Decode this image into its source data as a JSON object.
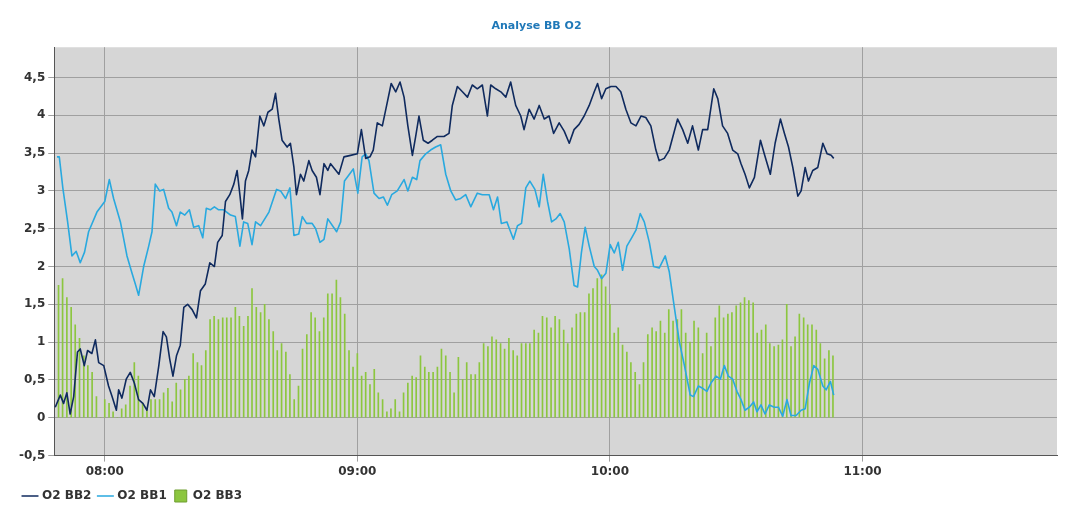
{
  "chart_data": {
    "type": "line",
    "title": "Analyse BB O2",
    "xlim": [
      7.8,
      11.77
    ],
    "xticks": [
      {
        "value": 8,
        "label": "08:00"
      },
      {
        "value": 9,
        "label": "09:00"
      },
      {
        "value": 10,
        "label": "10:00"
      },
      {
        "value": 11,
        "label": "11:00"
      }
    ],
    "ylim": [
      -0.5,
      4.9
    ],
    "yticks": [
      {
        "value": -0.5,
        "label": "-0,5"
      },
      0,
      {
        "value": 0.5,
        "label": "0,5"
      },
      1,
      {
        "value": 1.5,
        "label": "1,5"
      },
      2,
      {
        "value": 2.5,
        "label": "2,5"
      },
      3,
      {
        "value": 3.5,
        "label": "3,5"
      },
      4,
      {
        "value": 4.5,
        "label": "4,5"
      }
    ],
    "grid": true,
    "legend": "bottom left",
    "marker": "none",
    "line_style": "solid",
    "series": [
      {
        "name": "O2 BB2",
        "color": "#0f2a5e",
        "x": [
          7.804,
          7.824,
          7.837,
          7.85,
          7.863,
          7.877,
          7.892,
          7.903,
          7.919,
          7.932,
          7.949,
          7.963,
          7.976,
          7.996,
          8.015,
          8.029,
          8.046,
          8.055,
          8.068,
          8.085,
          8.101,
          8.117,
          8.134,
          8.151,
          8.167,
          8.181,
          8.196,
          8.214,
          8.231,
          8.244,
          8.257,
          8.27,
          8.284,
          8.299,
          8.313,
          8.328,
          8.346,
          8.363,
          8.379,
          8.398,
          8.416,
          8.434,
          8.447,
          8.465,
          8.478,
          8.495,
          8.511,
          8.524,
          8.535,
          8.545,
          8.557,
          8.57,
          8.583,
          8.597,
          8.614,
          8.63,
          8.646,
          8.663,
          8.676,
          8.689,
          8.702,
          8.722,
          8.735,
          8.749,
          8.759,
          8.775,
          8.788,
          8.808,
          8.821,
          8.838,
          8.852,
          8.868,
          8.883,
          8.894,
          8.927,
          8.947,
          8.973,
          9.0,
          9.016,
          9.033,
          9.05,
          9.063,
          9.079,
          9.099,
          9.116,
          9.134,
          9.152,
          9.169,
          9.185,
          9.2,
          9.218,
          9.231,
          9.244,
          9.261,
          9.28,
          9.297,
          9.317,
          9.343,
          9.363,
          9.376,
          9.396,
          9.416,
          9.436,
          9.455,
          9.475,
          9.495,
          9.515,
          9.528,
          9.548,
          9.568,
          9.588,
          9.607,
          9.627,
          9.647,
          9.66,
          9.68,
          9.7,
          9.72,
          9.74,
          9.759,
          9.777,
          9.799,
          9.819,
          9.839,
          9.858,
          9.878,
          9.898,
          9.918,
          9.938,
          9.951,
          9.967,
          9.984,
          10.004,
          10.024,
          10.043,
          10.063,
          10.083,
          10.103,
          10.123,
          10.142,
          10.162,
          10.182,
          10.195,
          10.215,
          10.235,
          10.268,
          10.288,
          10.308,
          10.327,
          10.35,
          10.367,
          10.387,
          10.403,
          10.411,
          10.427,
          10.446,
          10.466,
          10.486,
          10.506,
          10.519,
          10.535,
          10.552,
          10.572,
          10.596,
          10.611,
          10.635,
          10.654,
          10.675,
          10.691,
          10.707,
          10.724,
          10.744,
          10.757,
          10.773,
          10.786,
          10.803,
          10.823,
          10.843,
          10.86,
          10.876,
          10.886
        ],
        "values": [
          0.14,
          0.3,
          0.19,
          0.33,
          0.05,
          0.28,
          0.87,
          0.91,
          0.69,
          0.89,
          0.85,
          1.03,
          0.73,
          0.69,
          0.42,
          0.28,
          0.1,
          0.37,
          0.26,
          0.51,
          0.6,
          0.46,
          0.24,
          0.19,
          0.1,
          0.37,
          0.28,
          0.69,
          1.14,
          1.07,
          0.78,
          0.55,
          0.82,
          0.96,
          1.46,
          1.5,
          1.43,
          1.32,
          1.68,
          1.77,
          2.05,
          2.0,
          2.32,
          2.41,
          2.86,
          2.95,
          3.09,
          3.27,
          2.95,
          2.63,
          3.13,
          3.27,
          3.54,
          3.45,
          3.99,
          3.86,
          4.04,
          4.08,
          4.29,
          3.95,
          3.67,
          3.58,
          3.63,
          3.31,
          2.95,
          3.22,
          3.13,
          3.4,
          3.27,
          3.18,
          2.95,
          3.36,
          3.27,
          3.36,
          3.22,
          3.45,
          3.47,
          3.49,
          3.81,
          3.43,
          3.45,
          3.54,
          3.9,
          3.86,
          4.13,
          4.42,
          4.31,
          4.44,
          4.24,
          3.86,
          3.47,
          3.72,
          3.99,
          3.67,
          3.63,
          3.67,
          3.72,
          3.72,
          3.76,
          4.13,
          4.38,
          4.31,
          4.24,
          4.4,
          4.35,
          4.4,
          3.99,
          4.4,
          4.35,
          4.31,
          4.24,
          4.44,
          4.13,
          3.99,
          3.81,
          4.08,
          3.95,
          4.13,
          3.95,
          3.99,
          3.76,
          3.9,
          3.79,
          3.63,
          3.81,
          3.88,
          3.99,
          4.13,
          4.31,
          4.42,
          4.22,
          4.35,
          4.38,
          4.38,
          4.31,
          4.08,
          3.9,
          3.86,
          3.99,
          3.97,
          3.86,
          3.54,
          3.4,
          3.43,
          3.54,
          3.95,
          3.81,
          3.63,
          3.86,
          3.54,
          3.81,
          3.81,
          4.17,
          4.35,
          4.22,
          3.86,
          3.76,
          3.54,
          3.49,
          3.36,
          3.22,
          3.04,
          3.18,
          3.67,
          3.49,
          3.22,
          3.63,
          3.95,
          3.76,
          3.58,
          3.31,
          2.93,
          3.0,
          3.31,
          3.13,
          3.27,
          3.31,
          3.63,
          3.49,
          3.47,
          3.43
        ]
      },
      {
        "name": "O2 BB1",
        "color": "#29a9df",
        "x": [
          7.811,
          7.82,
          7.834,
          7.853,
          7.87,
          7.887,
          7.903,
          7.92,
          7.936,
          7.969,
          8.0,
          8.018,
          8.035,
          8.062,
          8.088,
          8.108,
          8.121,
          8.134,
          8.154,
          8.174,
          8.187,
          8.2,
          8.217,
          8.233,
          8.253,
          8.266,
          8.284,
          8.299,
          8.317,
          8.335,
          8.352,
          8.372,
          8.388,
          8.402,
          8.418,
          8.434,
          8.451,
          8.471,
          8.498,
          8.517,
          8.535,
          8.55,
          8.566,
          8.583,
          8.597,
          8.617,
          8.65,
          8.68,
          8.696,
          8.716,
          8.733,
          8.749,
          8.768,
          8.782,
          8.799,
          8.821,
          8.835,
          8.852,
          8.868,
          8.883,
          8.918,
          8.934,
          8.949,
          8.984,
          9.002,
          9.019,
          9.033,
          9.046,
          9.066,
          9.086,
          9.103,
          9.119,
          9.136,
          9.158,
          9.185,
          9.2,
          9.218,
          9.235,
          9.248,
          9.271,
          9.29,
          9.31,
          9.33,
          9.35,
          9.37,
          9.389,
          9.409,
          9.429,
          9.449,
          9.475,
          9.495,
          9.522,
          9.539,
          9.555,
          9.57,
          9.592,
          9.618,
          9.634,
          9.65,
          9.667,
          9.683,
          9.703,
          9.72,
          9.736,
          9.753,
          9.769,
          9.786,
          9.803,
          9.819,
          9.839,
          9.858,
          9.872,
          9.887,
          9.902,
          9.918,
          9.938,
          9.951,
          9.967,
          9.984,
          10.001,
          10.017,
          10.033,
          10.05,
          10.067,
          10.086,
          10.103,
          10.12,
          10.136,
          10.156,
          10.173,
          10.195,
          10.219,
          10.235,
          10.255,
          10.275,
          10.295,
          10.318,
          10.331,
          10.35,
          10.367,
          10.384,
          10.4,
          10.42,
          10.437,
          10.453,
          10.469,
          10.486,
          10.503,
          10.519,
          10.535,
          10.552,
          10.569,
          10.582,
          10.598,
          10.614,
          10.631,
          10.651,
          10.667,
          10.684,
          10.701,
          10.717,
          10.737,
          10.757,
          10.773,
          10.79,
          10.807,
          10.823,
          10.843,
          10.856,
          10.873,
          10.886
        ],
        "values": [
          3.45,
          3.45,
          3.04,
          2.59,
          2.14,
          2.2,
          2.05,
          2.19,
          2.46,
          2.72,
          2.86,
          3.15,
          2.9,
          2.59,
          2.14,
          1.91,
          1.77,
          1.62,
          2.0,
          2.27,
          2.46,
          3.09,
          3.0,
          3.02,
          2.77,
          2.72,
          2.54,
          2.72,
          2.68,
          2.75,
          2.52,
          2.54,
          2.38,
          2.77,
          2.75,
          2.79,
          2.75,
          2.75,
          2.68,
          2.66,
          2.27,
          2.59,
          2.57,
          2.29,
          2.59,
          2.54,
          2.72,
          3.02,
          3.0,
          2.9,
          3.04,
          2.41,
          2.43,
          2.66,
          2.57,
          2.57,
          2.5,
          2.32,
          2.36,
          2.63,
          2.46,
          2.59,
          3.13,
          3.29,
          2.97,
          3.45,
          3.49,
          3.4,
          2.97,
          2.9,
          2.92,
          2.81,
          2.95,
          3.0,
          3.15,
          3.0,
          3.18,
          3.15,
          3.4,
          3.49,
          3.54,
          3.58,
          3.61,
          3.22,
          3.0,
          2.88,
          2.9,
          2.95,
          2.79,
          2.97,
          2.95,
          2.95,
          2.75,
          2.92,
          2.57,
          2.59,
          2.36,
          2.54,
          2.57,
          3.04,
          3.13,
          3.02,
          2.79,
          3.22,
          2.86,
          2.59,
          2.63,
          2.7,
          2.59,
          2.23,
          1.75,
          1.73,
          2.18,
          2.52,
          2.27,
          2.0,
          1.95,
          1.84,
          1.91,
          2.29,
          2.18,
          2.32,
          1.95,
          2.27,
          2.38,
          2.48,
          2.7,
          2.59,
          2.32,
          2.0,
          1.98,
          2.14,
          1.93,
          1.46,
          1.0,
          0.69,
          0.3,
          0.28,
          0.42,
          0.39,
          0.35,
          0.46,
          0.55,
          0.51,
          0.69,
          0.55,
          0.51,
          0.35,
          0.24,
          0.1,
          0.14,
          0.21,
          0.08,
          0.17,
          0.05,
          0.17,
          0.14,
          0.14,
          0.02,
          0.24,
          0.03,
          0.03,
          0.1,
          0.12,
          0.46,
          0.69,
          0.64,
          0.42,
          0.37,
          0.48,
          0.3
        ]
      },
      {
        "name": "O2 BB3",
        "type": "bar",
        "color": "#8cc63f",
        "x": [
          7.817,
          7.833,
          7.85,
          7.867,
          7.883,
          7.9,
          7.917,
          7.933,
          7.95,
          7.967,
          7.983,
          8.0,
          8.017,
          8.033,
          8.05,
          8.067,
          8.083,
          8.1,
          8.117,
          8.133,
          8.15,
          8.167,
          8.183,
          8.2,
          8.217,
          8.233,
          8.25,
          8.267,
          8.283,
          8.3,
          8.317,
          8.333,
          8.35,
          8.367,
          8.383,
          8.4,
          8.417,
          8.433,
          8.45,
          8.467,
          8.483,
          8.5,
          8.517,
          8.533,
          8.55,
          8.567,
          8.583,
          8.6,
          8.617,
          8.633,
          8.65,
          8.667,
          8.683,
          8.7,
          8.717,
          8.733,
          8.75,
          8.767,
          8.783,
          8.8,
          8.817,
          8.833,
          8.85,
          8.867,
          8.883,
          8.9,
          8.917,
          8.933,
          8.95,
          8.967,
          8.983,
          9.0,
          9.017,
          9.033,
          9.05,
          9.067,
          9.083,
          9.1,
          9.117,
          9.133,
          9.15,
          9.167,
          9.183,
          9.2,
          9.217,
          9.233,
          9.25,
          9.267,
          9.283,
          9.3,
          9.317,
          9.333,
          9.35,
          9.367,
          9.383,
          9.4,
          9.417,
          9.433,
          9.45,
          9.467,
          9.483,
          9.5,
          9.517,
          9.533,
          9.55,
          9.567,
          9.583,
          9.6,
          9.617,
          9.633,
          9.65,
          9.667,
          9.683,
          9.7,
          9.717,
          9.733,
          9.75,
          9.767,
          9.783,
          9.8,
          9.817,
          9.833,
          9.85,
          9.867,
          9.883,
          9.9,
          9.917,
          9.933,
          9.95,
          9.967,
          9.983,
          10.0,
          10.017,
          10.033,
          10.05,
          10.067,
          10.083,
          10.1,
          10.117,
          10.133,
          10.15,
          10.167,
          10.183,
          10.2,
          10.217,
          10.233,
          10.25,
          10.267,
          10.283,
          10.3,
          10.317,
          10.333,
          10.35,
          10.367,
          10.383,
          10.4,
          10.417,
          10.433,
          10.45,
          10.467,
          10.483,
          10.5,
          10.517,
          10.533,
          10.55,
          10.567,
          10.583,
          10.6,
          10.617,
          10.633,
          10.65,
          10.667,
          10.683,
          10.7,
          10.717,
          10.733,
          10.75,
          10.767,
          10.783,
          10.8,
          10.817,
          10.833,
          10.85,
          10.867,
          10.883
        ],
        "values": [
          1.75,
          1.84,
          1.59,
          1.46,
          1.23,
          1.05,
          0.82,
          0.69,
          0.6,
          0.28,
          0,
          0.24,
          0.19,
          0.08,
          0,
          0.12,
          0.17,
          0.42,
          0.73,
          0.55,
          0.19,
          0.12,
          0.24,
          0.24,
          0.24,
          0.33,
          0.39,
          0.21,
          0.46,
          0.37,
          0.51,
          0.55,
          0.85,
          0.73,
          0.69,
          0.89,
          1.3,
          1.34,
          1.3,
          1.32,
          1.32,
          1.32,
          1.46,
          1.34,
          1.21,
          1.34,
          1.71,
          1.46,
          1.39,
          1.5,
          1.3,
          1.14,
          0.89,
          0.98,
          0.87,
          0.57,
          0.24,
          0.42,
          0.91,
          1.1,
          1.39,
          1.32,
          1.14,
          1.32,
          1.64,
          1.64,
          1.82,
          1.59,
          1.37,
          0.89,
          0.67,
          0.85,
          0.55,
          0.6,
          0.44,
          0.64,
          0.33,
          0.24,
          0.08,
          0.12,
          0.24,
          0.08,
          0.33,
          0.46,
          0.55,
          0.53,
          0.82,
          0.67,
          0.6,
          0.6,
          0.67,
          0.91,
          0.82,
          0.6,
          0.33,
          0.8,
          0.51,
          0.73,
          0.57,
          0.57,
          0.73,
          0.98,
          0.94,
          1.07,
          1.03,
          0.98,
          0.91,
          1.05,
          0.89,
          0.82,
          0.98,
          0.98,
          0.98,
          1.16,
          1.12,
          1.34,
          1.32,
          1.19,
          1.34,
          1.3,
          1.16,
          0.98,
          1.19,
          1.37,
          1.39,
          1.39,
          1.64,
          1.71,
          1.84,
          1.89,
          1.73,
          1.5,
          1.12,
          1.19,
          0.96,
          0.87,
          0.73,
          0.6,
          0.44,
          0.73,
          1.1,
          1.19,
          1.14,
          1.28,
          1.12,
          1.43,
          1.28,
          1.3,
          1.43,
          1.12,
          1.0,
          1.28,
          1.19,
          0.85,
          1.12,
          0.94,
          1.32,
          1.48,
          1.32,
          1.37,
          1.39,
          1.48,
          1.52,
          1.59,
          1.55,
          1.52,
          1.12,
          1.16,
          1.23,
          0.98,
          0.94,
          0.96,
          1.03,
          1.5,
          0.94,
          1.07,
          1.37,
          1.32,
          1.23,
          1.23,
          1.16,
          0.98,
          0.78,
          0.89,
          0.82
        ]
      }
    ]
  }
}
